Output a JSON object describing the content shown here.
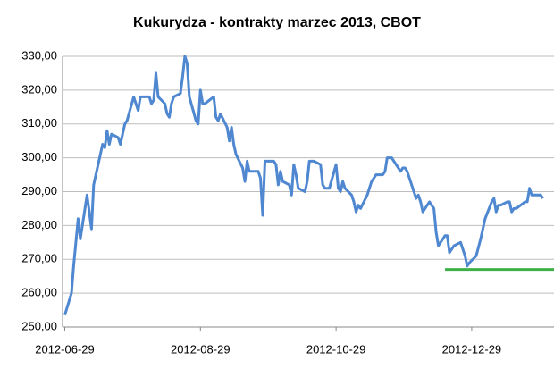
{
  "chart_data": {
    "type": "line",
    "title": "Kukurydza - kontrakty marzec 2013, CBOT",
    "x": [
      "2012-06-29",
      "2012-07-02",
      "2012-07-03",
      "2012-07-05",
      "2012-07-06",
      "2012-07-09",
      "2012-07-10",
      "2012-07-11",
      "2012-07-12",
      "2012-07-13",
      "2012-07-16",
      "2012-07-17",
      "2012-07-18",
      "2012-07-19",
      "2012-07-20",
      "2012-07-23",
      "2012-07-24",
      "2012-07-25",
      "2012-07-26",
      "2012-07-27",
      "2012-07-30",
      "2012-07-31",
      "2012-08-01",
      "2012-08-02",
      "2012-08-03",
      "2012-08-06",
      "2012-08-07",
      "2012-08-08",
      "2012-08-09",
      "2012-08-10",
      "2012-08-13",
      "2012-08-14",
      "2012-08-15",
      "2012-08-16",
      "2012-08-17",
      "2012-08-20",
      "2012-08-21",
      "2012-08-22",
      "2012-08-23",
      "2012-08-24",
      "2012-08-27",
      "2012-08-28",
      "2012-08-29",
      "2012-08-30",
      "2012-08-31",
      "2012-09-04",
      "2012-09-05",
      "2012-09-06",
      "2012-09-07",
      "2012-09-10",
      "2012-09-11",
      "2012-09-12",
      "2012-09-13",
      "2012-09-14",
      "2012-09-17",
      "2012-09-18",
      "2012-09-19",
      "2012-09-20",
      "2012-09-21",
      "2012-09-24",
      "2012-09-25",
      "2012-09-26",
      "2012-09-27",
      "2012-09-28",
      "2012-10-01",
      "2012-10-02",
      "2012-10-03",
      "2012-10-04",
      "2012-10-05",
      "2012-10-08",
      "2012-10-09",
      "2012-10-10",
      "2012-10-11",
      "2012-10-12",
      "2012-10-15",
      "2012-10-16",
      "2012-10-17",
      "2012-10-18",
      "2012-10-19",
      "2012-10-22",
      "2012-10-23",
      "2012-10-24",
      "2012-10-25",
      "2012-10-26",
      "2012-10-29",
      "2012-10-30",
      "2012-10-31",
      "2012-11-01",
      "2012-11-02",
      "2012-11-05",
      "2012-11-06",
      "2012-11-07",
      "2012-11-08",
      "2012-11-09",
      "2012-11-12",
      "2012-11-13",
      "2012-11-14",
      "2012-11-15",
      "2012-11-16",
      "2012-11-19",
      "2012-11-20",
      "2012-11-21",
      "2012-11-23",
      "2012-11-26",
      "2012-11-27",
      "2012-11-28",
      "2012-11-29",
      "2012-11-30",
      "2012-12-03",
      "2012-12-04",
      "2012-12-05",
      "2012-12-06",
      "2012-12-07",
      "2012-12-10",
      "2012-12-11",
      "2012-12-12",
      "2012-12-13",
      "2012-12-14",
      "2012-12-17",
      "2012-12-18",
      "2012-12-19",
      "2012-12-20",
      "2012-12-21",
      "2012-12-24",
      "2012-12-26",
      "2012-12-27",
      "2012-12-28",
      "2012-12-31",
      "2013-01-02",
      "2013-01-03",
      "2013-01-04",
      "2013-01-07",
      "2013-01-08",
      "2013-01-09",
      "2013-01-10",
      "2013-01-11",
      "2013-01-14",
      "2013-01-15",
      "2013-01-16",
      "2013-01-17",
      "2013-01-18",
      "2013-01-22",
      "2013-01-23",
      "2013-01-24",
      "2013-01-25",
      "2013-01-28",
      "2013-01-29",
      "2013-01-30"
    ],
    "series": [
      {
        "color": "#4f88d0",
        "values": [
          253.5,
          260,
          268,
          282,
          276,
          289,
          284,
          279,
          292,
          295,
          304,
          303,
          308,
          304,
          307,
          306,
          304,
          307,
          310,
          311,
          318,
          316,
          314,
          318,
          318,
          318,
          316,
          317,
          325,
          318,
          316,
          313,
          312,
          316,
          318,
          319,
          324,
          330,
          328,
          318,
          311,
          310,
          320,
          316,
          316,
          318,
          312,
          311,
          313,
          309,
          305,
          309,
          304,
          301,
          297,
          293,
          299,
          296,
          296,
          296,
          294,
          283,
          299,
          299,
          299,
          298,
          292,
          296,
          293,
          292,
          289,
          298,
          295,
          291,
          290,
          293,
          299,
          299,
          299,
          298,
          292,
          291,
          291,
          291,
          298,
          291,
          290,
          293,
          291,
          289,
          287,
          284,
          286,
          285,
          289,
          291,
          293,
          294,
          295,
          295,
          296,
          300,
          300,
          297,
          296,
          297,
          297,
          296,
          290,
          288,
          289,
          287,
          284,
          287,
          286,
          285,
          278,
          274,
          277,
          277,
          272,
          273,
          274,
          275,
          271,
          268,
          269,
          271,
          276,
          279,
          282,
          287,
          288,
          284,
          286,
          286,
          287,
          287,
          284,
          285,
          285,
          287,
          287,
          291,
          289,
          289,
          289,
          288
        ]
      }
    ],
    "reference_line": {
      "value": 267,
      "x": [
        "2012-12-17",
        "2013-02-04"
      ],
      "color": "#3db04a"
    },
    "xlim": [
      "2012-06-28",
      "2013-02-04"
    ],
    "xticks": [
      "2012-06-29",
      "2012-08-29",
      "2012-10-29",
      "2012-12-29"
    ],
    "ylim": [
      250,
      330
    ],
    "yticks": [
      {
        "value": 250,
        "label": "250,00"
      },
      {
        "value": 260,
        "label": "260,00"
      },
      {
        "value": 270,
        "label": "270,00"
      },
      {
        "value": 280,
        "label": "280,00"
      },
      {
        "value": 290,
        "label": "290,00"
      },
      {
        "value": 300,
        "label": "300,00"
      },
      {
        "value": 310,
        "label": "310,00"
      },
      {
        "value": 320,
        "label": "320,00"
      },
      {
        "value": 330,
        "label": "330,00"
      }
    ],
    "grid": true
  }
}
